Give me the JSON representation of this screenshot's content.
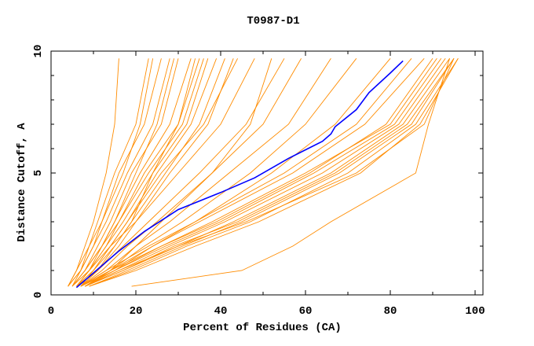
{
  "chart_data": {
    "type": "line",
    "title": "T0987-D1",
    "xlabel": "Percent of Residues (CA)",
    "ylabel": "Distance Cutoff, A",
    "xlim": [
      0,
      101.8
    ],
    "ylim": [
      0,
      10
    ],
    "x_ticks": [
      "0",
      "20",
      "40",
      "60",
      "80",
      "100"
    ],
    "y_ticks": [
      "0",
      "5",
      "10"
    ],
    "grid": false,
    "colors": {
      "models": "#ff8c00",
      "highlight": "#0000ff"
    },
    "y_levels": [
      0.35,
      1,
      2,
      3,
      5,
      7,
      9.7
    ],
    "series": [
      {
        "x": [
          4,
          6,
          8,
          10,
          13,
          15,
          16
        ]
      },
      {
        "x": [
          4,
          6,
          9,
          11,
          15,
          20,
          23
        ]
      },
      {
        "x": [
          5,
          7,
          10,
          12,
          16,
          22,
          26
        ]
      },
      {
        "x": [
          4,
          7,
          10,
          13,
          18,
          24,
          28
        ]
      },
      {
        "x": [
          5,
          8,
          11,
          14,
          19,
          26,
          30
        ]
      },
      {
        "x": [
          5,
          8,
          12,
          15,
          21,
          28,
          33
        ]
      },
      {
        "x": [
          6,
          9,
          13,
          16,
          22,
          30,
          35
        ]
      },
      {
        "x": [
          6,
          9,
          13,
          17,
          24,
          32,
          37
        ]
      },
      {
        "x": [
          6,
          10,
          14,
          18,
          25,
          33,
          39
        ]
      },
      {
        "x": [
          7,
          10,
          15,
          19,
          27,
          35,
          41
        ]
      },
      {
        "x": [
          7,
          11,
          16,
          20,
          28,
          37,
          43
        ]
      },
      {
        "x": [
          5,
          8,
          12,
          16,
          23,
          31,
          36
        ]
      },
      {
        "x": [
          6,
          9,
          12,
          15,
          20,
          25,
          29
        ]
      },
      {
        "x": [
          4,
          7,
          9,
          12,
          17,
          21,
          24
        ]
      },
      {
        "x": [
          5,
          9,
          14,
          18,
          26,
          36,
          44
        ]
      },
      {
        "x": [
          7,
          11,
          15,
          19,
          24,
          30,
          34
        ]
      },
      {
        "x": [
          6,
          10,
          14,
          20,
          30,
          40,
          48
        ]
      },
      {
        "x": [
          6,
          11,
          17,
          23,
          35,
          46,
          55
        ]
      },
      {
        "x": [
          7,
          12,
          18,
          25,
          38,
          50,
          59
        ]
      },
      {
        "x": [
          7,
          13,
          20,
          28,
          42,
          56,
          66
        ]
      },
      {
        "x": [
          8,
          14,
          22,
          31,
          47,
          60,
          72
        ]
      },
      {
        "x": [
          8,
          15,
          24,
          34,
          52,
          67,
          80
        ]
      },
      {
        "x": [
          8,
          14,
          20,
          26,
          38,
          47,
          52
        ]
      },
      {
        "x": [
          7,
          14,
          26,
          38,
          60,
          80,
          91
        ]
      },
      {
        "x": [
          7,
          15,
          27,
          40,
          62,
          81,
          92
        ]
      },
      {
        "x": [
          8,
          16,
          28,
          41,
          64,
          82,
          93
        ]
      },
      {
        "x": [
          8,
          17,
          30,
          43,
          66,
          83,
          94
        ]
      },
      {
        "x": [
          8,
          17,
          29,
          44,
          67,
          84,
          95
        ]
      },
      {
        "x": [
          9,
          18,
          31,
          45,
          68,
          85,
          95
        ]
      },
      {
        "x": [
          8,
          15,
          26,
          39,
          61,
          79,
          90
        ]
      },
      {
        "x": [
          9,
          19,
          32,
          47,
          70,
          86,
          96
        ]
      },
      {
        "x": [
          9,
          20,
          34,
          49,
          73,
          87,
          96
        ]
      },
      {
        "x": [
          8,
          16,
          30,
          46,
          72,
          88,
          95
        ]
      },
      {
        "x": [
          7,
          14,
          24,
          35,
          57,
          74,
          88
        ]
      },
      {
        "x": [
          7,
          13,
          23,
          34,
          55,
          72,
          85
        ]
      },
      {
        "x": [
          19,
          45,
          57,
          66,
          86,
          89,
          94
        ]
      }
    ],
    "highlight": {
      "x": [
        6,
        10,
        16,
        22,
        30,
        40,
        48,
        56,
        64,
        66,
        67,
        72,
        75,
        80,
        83
      ],
      "y": [
        0.3,
        0.9,
        1.8,
        2.6,
        3.5,
        4.2,
        4.8,
        5.6,
        6.3,
        6.6,
        6.9,
        7.6,
        8.3,
        9.1,
        9.6
      ]
    }
  }
}
